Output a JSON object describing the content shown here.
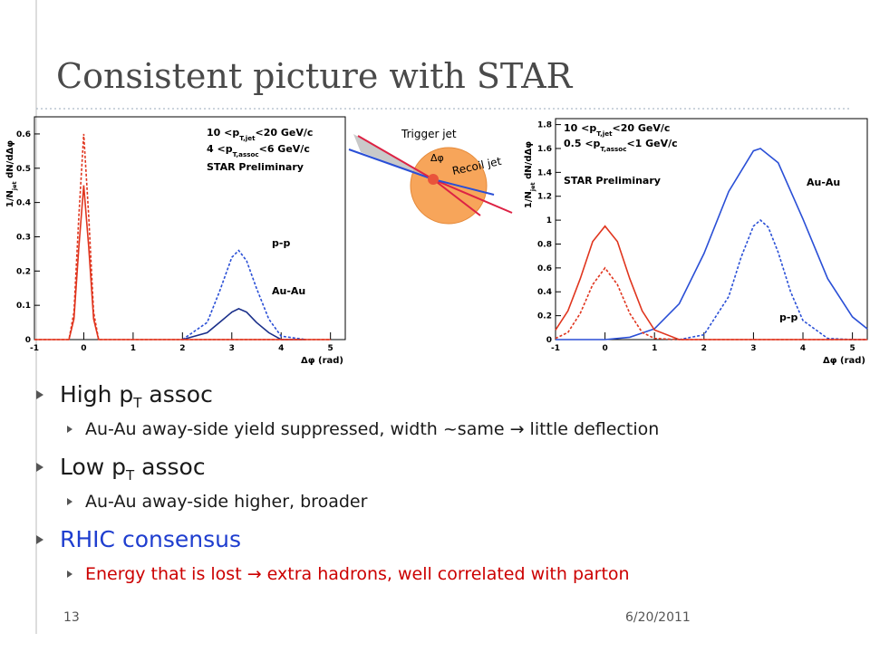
{
  "title": "Consistent picture with STAR",
  "diagram": {
    "trigger": "Trigger jet",
    "dphi": "Δφ",
    "recoil": "Recoil jet"
  },
  "chart_data": [
    {
      "type": "line",
      "ylabel": [
        "1/N",
        "jet",
        " dN/dΔφ"
      ],
      "xlabel": "Δφ (rad)",
      "annotations": [
        [
          "10 <p",
          "T,jet",
          "<20 GeV/c"
        ],
        [
          "4 <p",
          "T,assoc",
          "<6 GeV/c"
        ],
        [
          "STAR Preliminary"
        ]
      ],
      "xlim": [
        -1,
        5.3
      ],
      "ylim": [
        0,
        0.65
      ],
      "xticks": [
        -1,
        0,
        1,
        2,
        3,
        4,
        5
      ],
      "yticks": [
        0,
        0.1,
        0.2,
        0.3,
        0.4,
        0.5,
        0.6
      ],
      "series": [
        {
          "name": "p-p",
          "color": "#2a4fd6",
          "dashed": true,
          "x": [
            2,
            2.5,
            2.75,
            3,
            3.14,
            3.3,
            3.5,
            3.75,
            4,
            4.5
          ],
          "values": [
            0,
            0.05,
            0.14,
            0.24,
            0.26,
            0.23,
            0.15,
            0.06,
            0.01,
            0
          ]
        },
        {
          "name": "Au-Au",
          "color": "#1a2f8a",
          "dashed": false,
          "x": [
            2,
            2.5,
            2.75,
            3,
            3.14,
            3.3,
            3.5,
            3.75,
            4,
            4.5
          ],
          "values": [
            0,
            0.02,
            0.05,
            0.08,
            0.09,
            0.08,
            0.05,
            0.02,
            0,
            0
          ]
        },
        {
          "color": "#e0351e",
          "dashed": true,
          "x": [
            -1,
            -0.3,
            -0.2,
            -0.1,
            0,
            0.1,
            0.2,
            0.3,
            1,
            2,
            3,
            4,
            5
          ],
          "values": [
            0,
            0,
            0.08,
            0.36,
            0.6,
            0.36,
            0.08,
            0,
            0,
            0,
            0,
            0,
            0
          ]
        },
        {
          "color": "#e0351e",
          "dashed": false,
          "x": [
            -1,
            -0.3,
            -0.2,
            -0.1,
            0,
            0.1,
            0.2,
            0.3,
            1,
            2,
            3,
            4,
            5
          ],
          "values": [
            0,
            0,
            0.06,
            0.27,
            0.45,
            0.27,
            0.06,
            0,
            0,
            0,
            0,
            0,
            0
          ]
        }
      ]
    },
    {
      "type": "line",
      "ylabel": [
        "1/N",
        "jet",
        " dN/dΔφ"
      ],
      "xlabel": "Δφ (rad)",
      "annotations": [
        [
          "10 <p",
          "T,jet",
          "<20 GeV/c"
        ],
        [
          "0.5 <p",
          "T,assoc",
          "<1 GeV/c"
        ],
        [
          "STAR Preliminary"
        ]
      ],
      "xlim": [
        -1,
        5.3
      ],
      "ylim": [
        0,
        1.85
      ],
      "xticks": [
        -1,
        0,
        1,
        2,
        3,
        4,
        5
      ],
      "yticks": [
        0,
        0.2,
        0.4,
        0.6,
        0.8,
        1,
        1.2,
        1.4,
        1.6,
        1.8
      ],
      "series": [
        {
          "name": "Au-Au",
          "color": "#2a4fd6",
          "dashed": false,
          "x": [
            -1,
            -0.5,
            0,
            0.5,
            1,
            1.5,
            2,
            2.5,
            3,
            3.14,
            3.5,
            4,
            4.5,
            5,
            5.3
          ],
          "values": [
            0,
            0,
            0,
            0.02,
            0.09,
            0.3,
            0.72,
            1.24,
            1.58,
            1.6,
            1.48,
            1.01,
            0.51,
            0.19,
            0.09
          ]
        },
        {
          "name": "p-p",
          "color": "#2a4fd6",
          "dashed": true,
          "x": [
            1.5,
            2,
            2.5,
            2.75,
            3,
            3.14,
            3.3,
            3.5,
            3.75,
            4,
            4.5,
            5,
            5.3
          ],
          "values": [
            0,
            0.04,
            0.36,
            0.69,
            0.95,
            1,
            0.94,
            0.73,
            0.4,
            0.16,
            0.01,
            0,
            0
          ]
        },
        {
          "color": "#e0351e",
          "dashed": false,
          "x": [
            -1,
            -0.75,
            -0.5,
            -0.25,
            0,
            0.25,
            0.5,
            0.75,
            1,
            1.5,
            2,
            3,
            4,
            5.3
          ],
          "values": [
            0.08,
            0.24,
            0.51,
            0.82,
            0.95,
            0.82,
            0.51,
            0.24,
            0.08,
            0,
            0,
            0,
            0,
            0
          ]
        },
        {
          "color": "#e0351e",
          "dashed": true,
          "x": [
            -1,
            -0.75,
            -0.5,
            -0.25,
            0,
            0.25,
            0.5,
            0.75,
            1,
            1.5,
            2,
            3,
            4,
            5.3
          ],
          "values": [
            0.01,
            0.06,
            0.22,
            0.46,
            0.6,
            0.46,
            0.22,
            0.06,
            0.01,
            0,
            0,
            0,
            0,
            0
          ]
        }
      ]
    }
  ],
  "bullets": [
    {
      "level": 1,
      "color": "#1a1a1a",
      "parts": [
        "High p",
        "T",
        " assoc"
      ]
    },
    {
      "level": 2,
      "color": "#1a1a1a",
      "parts": [
        "Au-Au away-side yield suppressed, width ~same → little deflection"
      ]
    },
    {
      "level": 1,
      "color": "#1a1a1a",
      "parts": [
        "Low p",
        "T",
        " assoc"
      ]
    },
    {
      "level": 2,
      "color": "#1a1a1a",
      "parts": [
        "Au-Au away-side higher,  broader"
      ]
    },
    {
      "level": 1,
      "color": "#1f3ecf",
      "parts": [
        "RHIC consensus"
      ]
    },
    {
      "level": 2,
      "color": "#cc0000",
      "parts": [
        "Energy that is lost → extra hadrons, well correlated with parton"
      ]
    }
  ],
  "footer": {
    "page": "13",
    "date": "6/20/2011"
  }
}
